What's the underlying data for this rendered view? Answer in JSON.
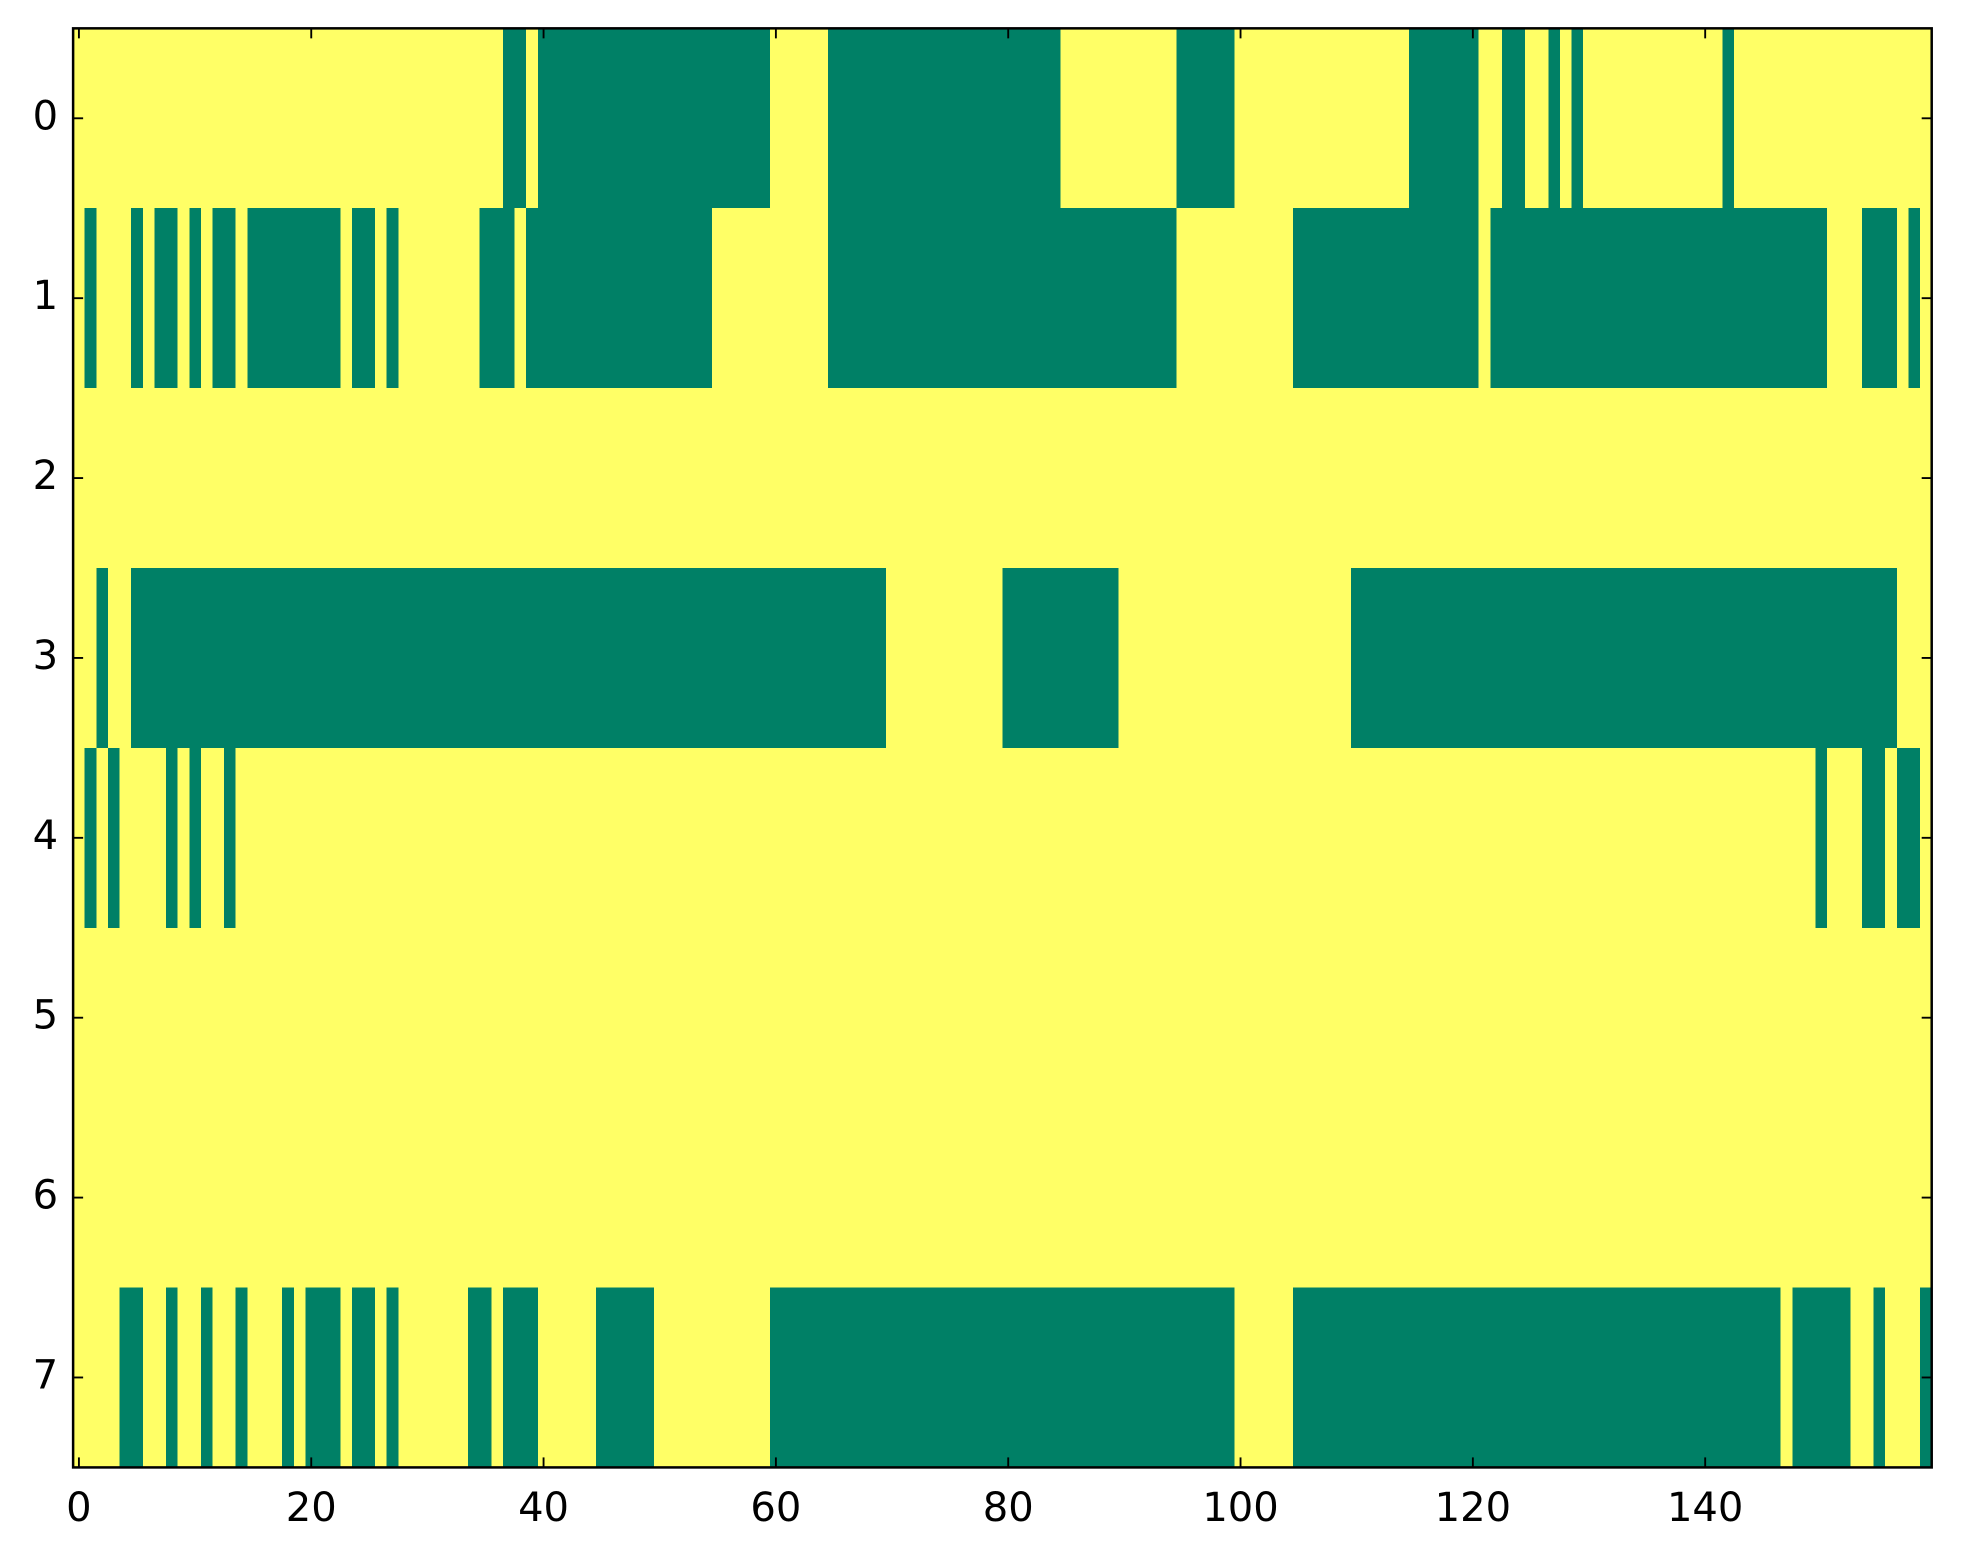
{
  "chart_data": {
    "type": "heatmap",
    "xlim": [
      -0.5,
      159.5
    ],
    "ylim": [
      7.5,
      -0.5
    ],
    "xticks": [
      0,
      20,
      40,
      60,
      80,
      100,
      120,
      140
    ],
    "yticks": [
      0,
      1,
      2,
      3,
      4,
      5,
      6,
      7
    ],
    "colormap": [
      "#008066",
      "#ffff66"
    ],
    "z": [
      [
        1,
        1,
        1,
        1,
        1,
        1,
        1,
        1,
        1,
        1,
        1,
        1,
        1,
        1,
        1,
        1,
        1,
        1,
        1,
        1,
        1,
        1,
        1,
        1,
        1,
        1,
        1,
        1,
        1,
        1,
        1,
        1,
        1,
        1,
        1,
        1,
        1,
        0,
        0,
        1,
        0,
        0,
        0,
        0,
        0,
        0,
        0,
        0,
        0,
        0,
        0,
        0,
        0,
        0,
        0,
        0,
        0,
        0,
        0,
        0,
        1,
        1,
        1,
        1,
        1,
        0,
        0,
        0,
        0,
        0,
        0,
        0,
        0,
        0,
        0,
        0,
        0,
        0,
        0,
        0,
        0,
        0,
        0,
        0,
        0,
        1,
        1,
        1,
        1,
        1,
        1,
        1,
        1,
        1,
        1,
        0,
        0,
        0,
        0,
        0,
        1,
        1,
        1,
        1,
        1,
        1,
        1,
        1,
        1,
        1,
        1,
        1,
        1,
        1,
        1,
        0,
        0,
        0,
        0,
        0,
        0,
        1,
        1,
        0,
        0,
        1,
        1,
        0,
        1,
        0,
        1,
        1,
        1,
        1,
        1,
        1,
        1,
        1,
        1,
        1,
        1,
        1,
        0,
        1,
        1,
        1,
        1,
        1,
        1,
        1,
        1,
        1,
        1,
        1,
        1,
        1,
        1,
        1,
        1,
        1
      ],
      [
        1,
        0,
        1,
        1,
        1,
        0,
        1,
        0,
        0,
        1,
        0,
        1,
        0,
        0,
        1,
        0,
        0,
        0,
        0,
        0,
        0,
        0,
        0,
        1,
        0,
        0,
        1,
        0,
        1,
        1,
        1,
        1,
        1,
        1,
        1,
        0,
        0,
        0,
        1,
        0,
        0,
        0,
        0,
        0,
        0,
        0,
        0,
        0,
        0,
        0,
        0,
        0,
        0,
        0,
        0,
        1,
        1,
        1,
        1,
        1,
        1,
        1,
        1,
        1,
        1,
        0,
        0,
        0,
        0,
        0,
        0,
        0,
        0,
        0,
        0,
        0,
        0,
        0,
        0,
        0,
        0,
        0,
        0,
        0,
        0,
        0,
        0,
        0,
        0,
        0,
        0,
        0,
        0,
        0,
        0,
        1,
        1,
        1,
        1,
        1,
        1,
        1,
        1,
        1,
        1,
        0,
        0,
        0,
        0,
        0,
        0,
        0,
        0,
        0,
        0,
        0,
        0,
        0,
        0,
        0,
        0,
        1,
        0,
        0,
        0,
        0,
        0,
        0,
        0,
        0,
        0,
        0,
        0,
        0,
        0,
        0,
        0,
        0,
        0,
        0,
        0,
        0,
        0,
        0,
        0,
        0,
        0,
        0,
        0,
        0,
        0,
        1,
        1,
        1,
        0,
        0,
        0,
        1,
        0,
        1
      ],
      [
        1,
        1,
        1,
        1,
        1,
        1,
        1,
        1,
        1,
        1,
        1,
        1,
        1,
        1,
        1,
        1,
        1,
        1,
        1,
        1,
        1,
        1,
        1,
        1,
        1,
        1,
        1,
        1,
        1,
        1,
        1,
        1,
        1,
        1,
        1,
        1,
        1,
        1,
        1,
        1,
        1,
        1,
        1,
        1,
        1,
        1,
        1,
        1,
        1,
        1,
        1,
        1,
        1,
        1,
        1,
        1,
        1,
        1,
        1,
        1,
        1,
        1,
        1,
        1,
        1,
        1,
        1,
        1,
        1,
        1,
        1,
        1,
        1,
        1,
        1,
        1,
        1,
        1,
        1,
        1,
        1,
        1,
        1,
        1,
        1,
        1,
        1,
        1,
        1,
        1,
        1,
        1,
        1,
        1,
        1,
        1,
        1,
        1,
        1,
        1,
        1,
        1,
        1,
        1,
        1,
        1,
        1,
        1,
        1,
        1,
        1,
        1,
        1,
        1,
        1,
        1,
        1,
        1,
        1,
        1,
        1,
        1,
        1,
        1,
        1,
        1,
        1,
        1,
        1,
        1,
        1,
        1,
        1,
        1,
        1,
        1,
        1,
        1,
        1,
        1,
        1,
        1,
        1,
        1,
        1,
        1,
        1,
        1,
        1,
        1,
        1,
        1,
        1,
        1,
        1,
        1,
        1,
        1,
        1,
        1
      ],
      [
        1,
        1,
        0,
        1,
        1,
        0,
        0,
        0,
        0,
        0,
        0,
        0,
        0,
        0,
        0,
        0,
        0,
        0,
        0,
        0,
        0,
        0,
        0,
        0,
        0,
        0,
        0,
        0,
        0,
        0,
        0,
        0,
        0,
        0,
        0,
        0,
        0,
        0,
        0,
        0,
        0,
        0,
        0,
        0,
        0,
        0,
        0,
        0,
        0,
        0,
        0,
        0,
        0,
        0,
        0,
        0,
        0,
        0,
        0,
        0,
        0,
        0,
        0,
        0,
        0,
        0,
        0,
        0,
        0,
        0,
        1,
        1,
        1,
        1,
        1,
        1,
        1,
        1,
        1,
        1,
        0,
        0,
        0,
        0,
        0,
        0,
        0,
        0,
        0,
        0,
        1,
        1,
        1,
        1,
        1,
        1,
        1,
        1,
        1,
        1,
        1,
        1,
        1,
        1,
        1,
        1,
        1,
        1,
        1,
        1,
        0,
        0,
        0,
        0,
        0,
        0,
        0,
        0,
        0,
        0,
        0,
        0,
        0,
        0,
        0,
        0,
        0,
        0,
        0,
        0,
        0,
        0,
        0,
        0,
        0,
        0,
        0,
        0,
        0,
        0,
        0,
        0,
        0,
        0,
        0,
        0,
        0,
        0,
        0,
        0,
        0,
        0,
        0,
        0,
        0,
        0,
        0,
        1,
        1,
        1
      ],
      [
        1,
        0,
        1,
        0,
        1,
        1,
        1,
        1,
        0,
        1,
        0,
        1,
        1,
        0,
        1,
        1,
        1,
        1,
        1,
        1,
        1,
        1,
        1,
        1,
        1,
        1,
        1,
        1,
        1,
        1,
        1,
        1,
        1,
        1,
        1,
        1,
        1,
        1,
        1,
        1,
        1,
        1,
        1,
        1,
        1,
        1,
        1,
        1,
        1,
        1,
        1,
        1,
        1,
        1,
        1,
        1,
        1,
        1,
        1,
        1,
        1,
        1,
        1,
        1,
        1,
        1,
        1,
        1,
        1,
        1,
        1,
        1,
        1,
        1,
        1,
        1,
        1,
        1,
        1,
        1,
        1,
        1,
        1,
        1,
        1,
        1,
        1,
        1,
        1,
        1,
        1,
        1,
        1,
        1,
        1,
        1,
        1,
        1,
        1,
        1,
        1,
        1,
        1,
        1,
        1,
        1,
        1,
        1,
        1,
        1,
        1,
        1,
        1,
        1,
        1,
        1,
        1,
        1,
        1,
        1,
        1,
        1,
        1,
        1,
        1,
        1,
        1,
        1,
        1,
        1,
        1,
        1,
        1,
        1,
        1,
        1,
        1,
        1,
        1,
        1,
        1,
        1,
        1,
        1,
        1,
        1,
        1,
        1,
        1,
        1,
        0,
        1,
        1,
        1,
        0,
        0,
        1,
        0,
        0,
        1
      ],
      [
        1,
        1,
        1,
        1,
        1,
        1,
        1,
        1,
        1,
        1,
        1,
        1,
        1,
        1,
        1,
        1,
        1,
        1,
        1,
        1,
        1,
        1,
        1,
        1,
        1,
        1,
        1,
        1,
        1,
        1,
        1,
        1,
        1,
        1,
        1,
        1,
        1,
        1,
        1,
        1,
        1,
        1,
        1,
        1,
        1,
        1,
        1,
        1,
        1,
        1,
        1,
        1,
        1,
        1,
        1,
        1,
        1,
        1,
        1,
        1,
        1,
        1,
        1,
        1,
        1,
        1,
        1,
        1,
        1,
        1,
        1,
        1,
        1,
        1,
        1,
        1,
        1,
        1,
        1,
        1,
        1,
        1,
        1,
        1,
        1,
        1,
        1,
        1,
        1,
        1,
        1,
        1,
        1,
        1,
        1,
        1,
        1,
        1,
        1,
        1,
        1,
        1,
        1,
        1,
        1,
        1,
        1,
        1,
        1,
        1,
        1,
        1,
        1,
        1,
        1,
        1,
        1,
        1,
        1,
        1,
        1,
        1,
        1,
        1,
        1,
        1,
        1,
        1,
        1,
        1,
        1,
        1,
        1,
        1,
        1,
        1,
        1,
        1,
        1,
        1,
        1,
        1,
        1,
        1,
        1,
        1,
        1,
        1,
        1,
        1,
        1,
        1,
        1,
        1,
        1,
        1,
        1,
        1,
        1,
        1
      ],
      [
        1,
        1,
        1,
        1,
        1,
        1,
        1,
        1,
        1,
        1,
        1,
        1,
        1,
        1,
        1,
        1,
        1,
        1,
        1,
        1,
        1,
        1,
        1,
        1,
        1,
        1,
        1,
        1,
        1,
        1,
        1,
        1,
        1,
        1,
        1,
        1,
        1,
        1,
        1,
        1,
        1,
        1,
        1,
        1,
        1,
        1,
        1,
        1,
        1,
        1,
        1,
        1,
        1,
        1,
        1,
        1,
        1,
        1,
        1,
        1,
        1,
        1,
        1,
        1,
        1,
        1,
        1,
        1,
        1,
        1,
        1,
        1,
        1,
        1,
        1,
        1,
        1,
        1,
        1,
        1,
        1,
        1,
        1,
        1,
        1,
        1,
        1,
        1,
        1,
        1,
        1,
        1,
        1,
        1,
        1,
        1,
        1,
        1,
        1,
        1,
        1,
        1,
        1,
        1,
        1,
        1,
        1,
        1,
        1,
        1,
        1,
        1,
        1,
        1,
        1,
        1,
        1,
        1,
        1,
        1,
        1,
        1,
        1,
        1,
        1,
        1,
        1,
        1,
        1,
        1,
        1,
        1,
        1,
        1,
        1,
        1,
        1,
        1,
        1,
        1,
        1,
        1,
        1,
        1,
        1,
        1,
        1,
        1,
        1,
        1,
        1,
        1,
        1,
        1,
        1,
        1,
        1,
        1,
        1,
        1
      ],
      [
        1,
        1,
        1,
        1,
        0,
        0,
        1,
        1,
        0,
        1,
        1,
        0,
        1,
        1,
        0,
        1,
        1,
        1,
        0,
        1,
        0,
        0,
        0,
        1,
        0,
        0,
        1,
        0,
        1,
        1,
        1,
        1,
        1,
        1,
        0,
        0,
        1,
        0,
        0,
        0,
        1,
        1,
        1,
        1,
        1,
        0,
        0,
        0,
        0,
        0,
        1,
        1,
        1,
        1,
        1,
        1,
        1,
        1,
        1,
        1,
        0,
        0,
        0,
        0,
        0,
        0,
        0,
        0,
        0,
        0,
        0,
        0,
        0,
        0,
        0,
        0,
        0,
        0,
        0,
        0,
        0,
        0,
        0,
        0,
        0,
        0,
        0,
        0,
        0,
        0,
        0,
        0,
        0,
        0,
        0,
        0,
        0,
        0,
        0,
        0,
        1,
        1,
        1,
        1,
        1,
        0,
        0,
        0,
        0,
        0,
        0,
        0,
        0,
        0,
        0,
        0,
        0,
        0,
        0,
        0,
        0,
        0,
        0,
        0,
        0,
        0,
        0,
        0,
        0,
        0,
        0,
        0,
        0,
        0,
        0,
        0,
        0,
        0,
        0,
        0,
        0,
        0,
        0,
        0,
        0,
        0,
        0,
        1,
        0,
        0,
        0,
        0,
        0,
        1,
        1,
        0,
        1,
        1,
        1,
        0
      ]
    ]
  }
}
